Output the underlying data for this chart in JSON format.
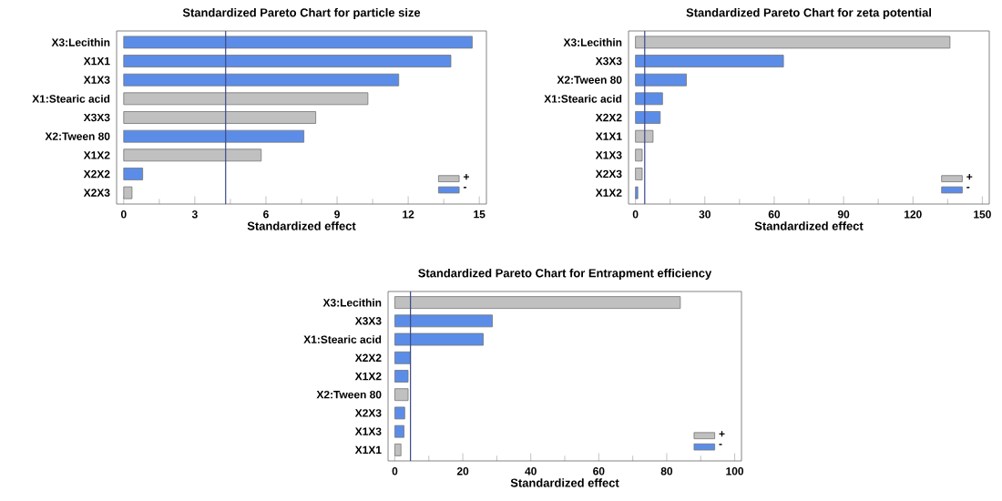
{
  "chart_data": [
    {
      "type": "bar",
      "orientation": "horizontal",
      "title": "Standardized Pareto Chart for particle size",
      "xlabel": "Standardized effect",
      "categories": [
        "X3:Lecithin",
        "X1X1",
        "X1X3",
        "X1:Stearic acid",
        "X3X3",
        "X2:Tween 80",
        "X1X2",
        "X2X2",
        "X2X3"
      ],
      "series": [
        {
          "name": "+",
          "color": "#c0c0c0",
          "values": [
            null,
            null,
            null,
            10.3,
            8.1,
            null,
            5.8,
            null,
            0.35
          ]
        },
        {
          "name": "-",
          "color": "#5b8de8",
          "values": [
            14.7,
            13.8,
            11.6,
            null,
            null,
            7.6,
            null,
            0.8,
            null
          ]
        }
      ],
      "xlim": [
        -0.3,
        15.3
      ],
      "xticks": [
        0,
        3,
        6,
        9,
        12,
        15
      ],
      "ref_lines": [
        {
          "axis": "x",
          "value": 4.3,
          "color": "#3a4a8a"
        }
      ],
      "legend": "bottom right"
    },
    {
      "type": "bar",
      "orientation": "horizontal",
      "title": "Standardized Pareto Chart for zeta potential",
      "xlabel": "Standardized effect",
      "categories": [
        "X3:Lecithin",
        "X3X3",
        "X2:Tween 80",
        "X1:Stearic acid",
        "X2X2",
        "X1X1",
        "X1X3",
        "X2X3",
        "X1X2"
      ],
      "series": [
        {
          "name": "+",
          "color": "#c0c0c0",
          "values": [
            136,
            null,
            null,
            null,
            null,
            7.6,
            2.9,
            2.9,
            null
          ]
        },
        {
          "name": "-",
          "color": "#5b8de8",
          "values": [
            null,
            64,
            22,
            11.7,
            10.7,
            null,
            null,
            null,
            1
          ]
        }
      ],
      "xlim": [
        -3,
        153
      ],
      "xticks": [
        0,
        30,
        60,
        90,
        120,
        150
      ],
      "ref_lines": [
        {
          "axis": "x",
          "value": 4,
          "color": "#3a4a8a"
        }
      ],
      "legend": "bottom right"
    },
    {
      "type": "bar",
      "orientation": "horizontal",
      "title": "Standardized Pareto Chart for Entrapment efficiency",
      "xlabel": "Standardized effect",
      "categories": [
        "X3:Lecithin",
        "X3X3",
        "X1:Stearic acid",
        "X2X2",
        "X1X2",
        "X2:Tween 80",
        "X2X3",
        "X1X3",
        "X1X1"
      ],
      "series": [
        {
          "name": "+",
          "color": "#c0c0c0",
          "values": [
            84,
            null,
            null,
            null,
            null,
            3.9,
            null,
            null,
            1.8
          ]
        },
        {
          "name": "-",
          "color": "#5b8de8",
          "values": [
            null,
            28.7,
            26,
            4.5,
            3.9,
            null,
            2.9,
            2.7,
            null
          ]
        }
      ],
      "xlim": [
        -2,
        102
      ],
      "xticks": [
        0,
        20,
        40,
        60,
        80,
        100
      ],
      "ref_lines": [
        {
          "axis": "x",
          "value": 4.6,
          "color": "#3a4a8a"
        }
      ],
      "legend": "bottom right"
    }
  ]
}
